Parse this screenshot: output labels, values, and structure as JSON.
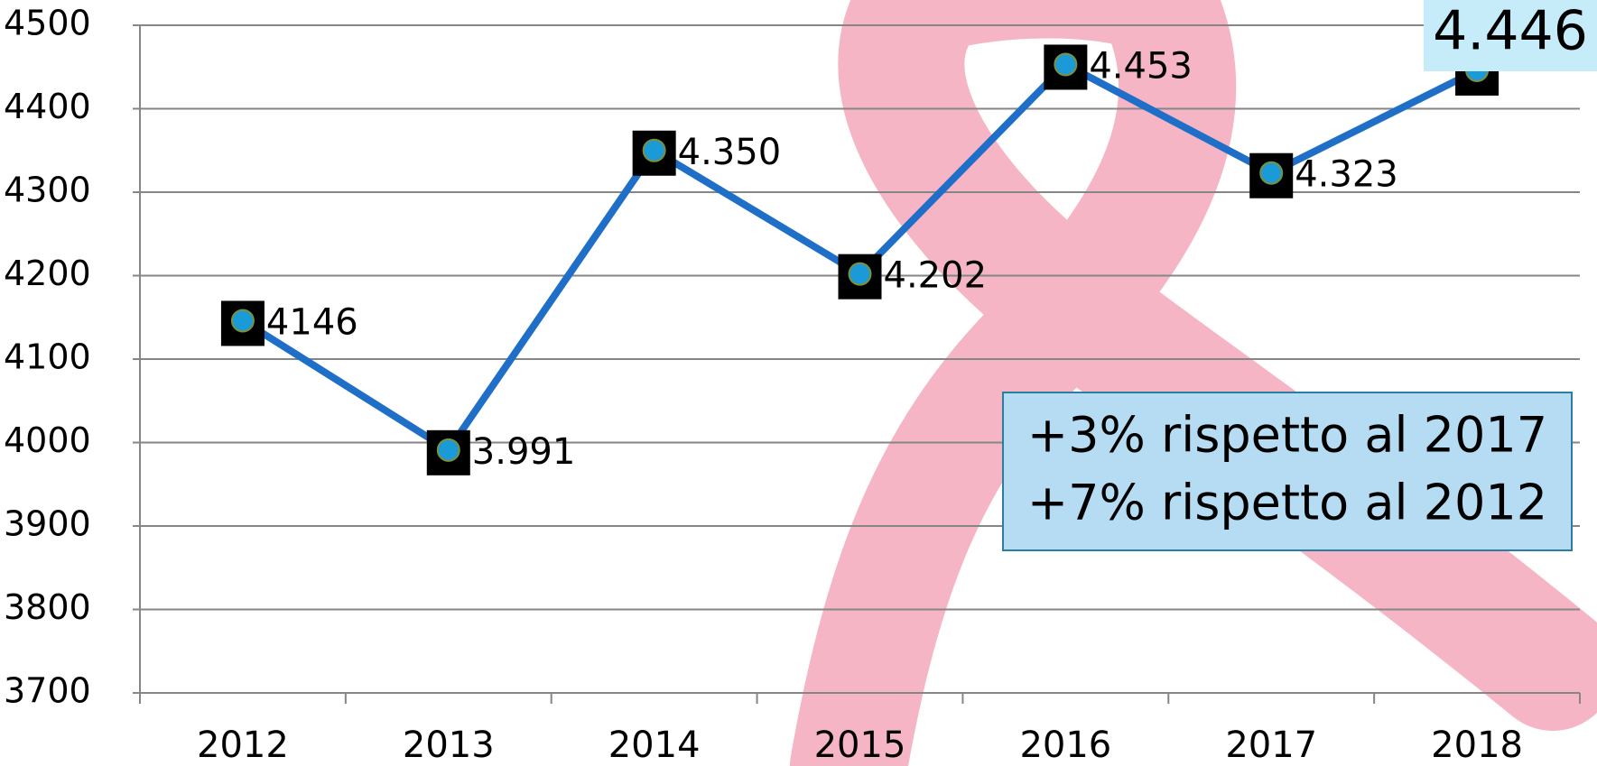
{
  "chart_data": {
    "type": "line",
    "categories": [
      "2012",
      "2013",
      "2014",
      "2015",
      "2016",
      "2017",
      "2018"
    ],
    "series": [
      {
        "color": "#1f6fc9",
        "values": [
          4146,
          3991,
          4350,
          4202,
          4453,
          4323,
          4446
        ],
        "value_labels": [
          "4146",
          "3.991",
          "4.350",
          "4.202",
          "4.453",
          "4.323",
          "4.446"
        ]
      }
    ],
    "ylim": [
      3700,
      4500
    ],
    "yticks": [
      3700,
      3800,
      3900,
      4000,
      4100,
      4200,
      4300,
      4400,
      4500
    ],
    "grid": true,
    "annotations": [
      "+3% rispetto al 2017",
      "+7% rispetto al 2012"
    ]
  }
}
